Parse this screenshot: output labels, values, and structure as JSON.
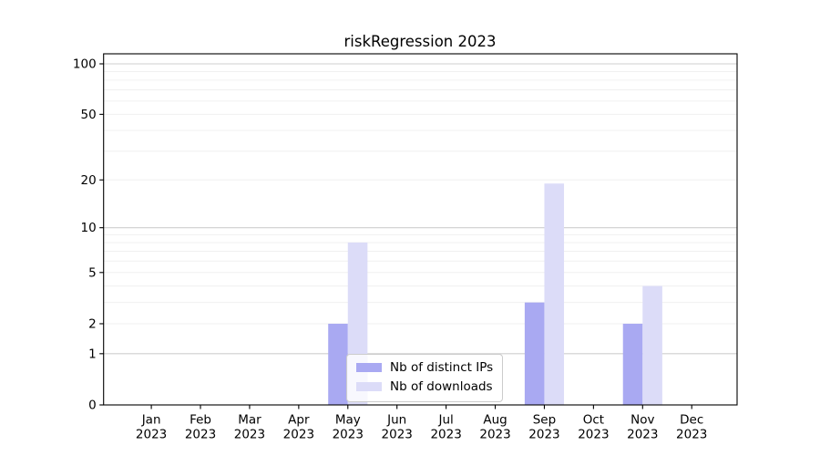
{
  "chart_data": {
    "type": "bar",
    "title": "riskRegression 2023",
    "categories": [
      "Jan 2023",
      "Feb 2023",
      "Mar 2023",
      "Apr 2023",
      "May 2023",
      "Jun 2023",
      "Jul 2023",
      "Aug 2023",
      "Sep 2023",
      "Oct 2023",
      "Nov 2023",
      "Dec 2023"
    ],
    "series": [
      {
        "name": "Nb of distinct IPs",
        "color": "#a9a9f2",
        "values": [
          0,
          0,
          0,
          0,
          2,
          0,
          0,
          0,
          3,
          0,
          2,
          0
        ]
      },
      {
        "name": "Nb of downloads",
        "color": "#dcdcf8",
        "values": [
          0,
          0,
          0,
          0,
          8,
          0,
          0,
          0,
          19,
          0,
          4,
          0
        ]
      }
    ],
    "xlabel": "",
    "ylabel": "",
    "yscale": "log1p",
    "ylim": [
      0,
      115
    ],
    "ytick_labels": [
      0,
      1,
      2,
      5,
      10,
      20,
      50,
      100
    ],
    "minor_grid_values": [
      2,
      3,
      4,
      5,
      6,
      7,
      8,
      9,
      20,
      30,
      40,
      50,
      60,
      70,
      80,
      90
    ],
    "major_grid_values": [
      1,
      10,
      100
    ],
    "grid": true,
    "legend_position": "lower center (inside plot)",
    "major_grid_color": "#cfcfcf",
    "minor_grid_color": "#f0f0f0",
    "axis_color": "#000000"
  }
}
